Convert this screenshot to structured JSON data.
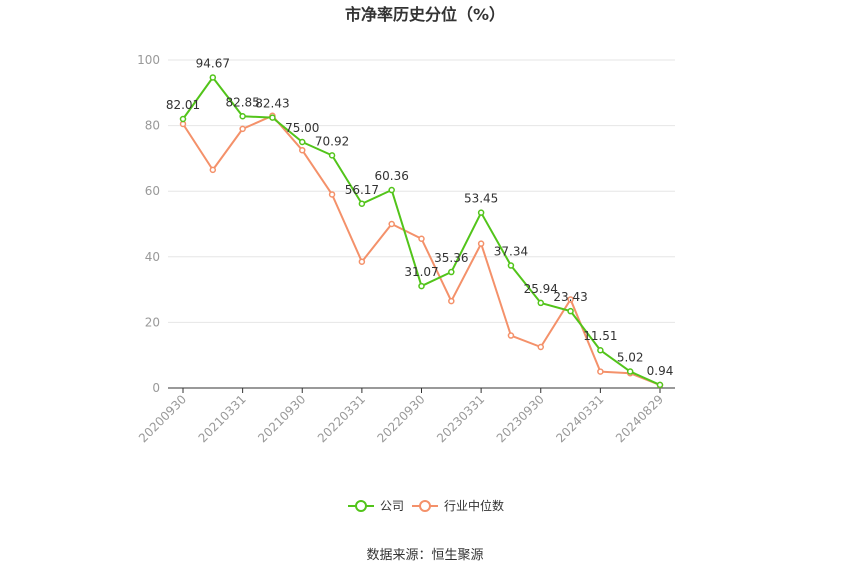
{
  "chart_data": {
    "type": "line",
    "title": "市净率历史分位（%）",
    "xlabel": "",
    "ylabel": "",
    "ylim": [
      0,
      100
    ],
    "yticks": [
      0,
      20,
      40,
      60,
      80,
      100
    ],
    "grid": true,
    "legend_position": "bottom",
    "categories": [
      "20200930",
      "20201231",
      "20210331",
      "20210630",
      "20210930",
      "20211231",
      "20220331",
      "20220630",
      "20220930",
      "20221230",
      "20230331",
      "20230630",
      "20230930",
      "20231229",
      "20240331",
      "20240630",
      "20240829"
    ],
    "x_tick_labels": [
      "20200930",
      "",
      "20210331",
      "",
      "20210930",
      "",
      "20220331",
      "",
      "20220930",
      "",
      "20230331",
      "",
      "20230930",
      "",
      "20240331",
      "",
      "20240829"
    ],
    "series": [
      {
        "name": "公司",
        "color": "#52c41a",
        "show_labels": true,
        "values": [
          82.01,
          94.67,
          82.85,
          82.43,
          75.0,
          70.92,
          56.17,
          60.36,
          31.07,
          35.36,
          53.45,
          37.34,
          25.94,
          23.43,
          11.51,
          5.02,
          0.94
        ],
        "labels": [
          "82.01",
          "94.67",
          "82.85",
          "82.43",
          "75.00",
          "70.92",
          "56.17",
          "60.36",
          "31.07",
          "35.36",
          "53.45",
          "37.34",
          "25.94",
          "23.43",
          "11.51",
          "5.02",
          "0.94"
        ]
      },
      {
        "name": "行业中位数",
        "color": "#f4916a",
        "show_labels": false,
        "values": [
          80.5,
          66.5,
          79,
          83,
          72.5,
          59,
          38.5,
          50,
          45.5,
          26.5,
          44,
          16,
          12.5,
          27,
          5,
          4.5,
          0.9
        ]
      }
    ]
  },
  "footer": {
    "source": "数据来源：恒生聚源"
  }
}
